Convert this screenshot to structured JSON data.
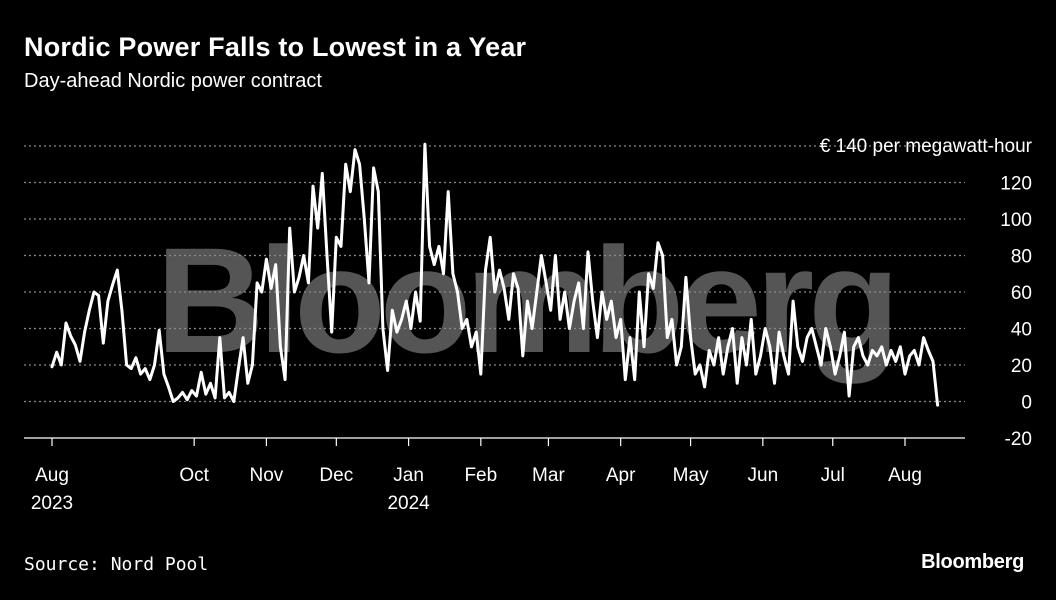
{
  "header": {
    "title": "Nordic Power Falls to Lowest in a Year",
    "subtitle": "Day-ahead Nordic power contract"
  },
  "footer": {
    "source": "Source: Nord Pool",
    "brand": "Bloomberg"
  },
  "watermark": "Bloomberg",
  "colors": {
    "background": "#000000",
    "line": "#ffffff",
    "grid": "#8a8a8a",
    "watermark": "#555555"
  },
  "chart_data": {
    "type": "line",
    "title": "Nordic Power Falls to Lowest in a Year",
    "subtitle": "Day-ahead Nordic power contract",
    "unit_label": "€ 140 per megawatt-hour",
    "ylim": [
      -20,
      140
    ],
    "yticks": [
      -20,
      0,
      20,
      40,
      60,
      80,
      100,
      120,
      140
    ],
    "ytick_labels": [
      "-20",
      "0",
      "20",
      "40",
      "60",
      "80",
      "100",
      "120",
      ""
    ],
    "xlim": [
      "2023-07-31",
      "2024-08-31"
    ],
    "xticks": [
      {
        "date": "2023-08-01",
        "label": "Aug",
        "sublabel": "2023"
      },
      {
        "date": "2023-10-01",
        "label": "Oct",
        "sublabel": ""
      },
      {
        "date": "2023-11-01",
        "label": "Nov",
        "sublabel": ""
      },
      {
        "date": "2023-12-01",
        "label": "Dec",
        "sublabel": ""
      },
      {
        "date": "2024-01-01",
        "label": "Jan",
        "sublabel": "2024"
      },
      {
        "date": "2024-02-01",
        "label": "Feb",
        "sublabel": ""
      },
      {
        "date": "2024-03-01",
        "label": "Mar",
        "sublabel": ""
      },
      {
        "date": "2024-04-01",
        "label": "Apr",
        "sublabel": ""
      },
      {
        "date": "2024-05-01",
        "label": "May",
        "sublabel": ""
      },
      {
        "date": "2024-06-01",
        "label": "Jun",
        "sublabel": ""
      },
      {
        "date": "2024-07-01",
        "label": "Jul",
        "sublabel": ""
      },
      {
        "date": "2024-08-01",
        "label": "Aug",
        "sublabel": ""
      }
    ],
    "grid": true,
    "series": [
      {
        "values": [
          [
            "2023-08-01",
            19
          ],
          [
            "2023-08-03",
            27
          ],
          [
            "2023-08-05",
            20
          ],
          [
            "2023-08-07",
            43
          ],
          [
            "2023-08-09",
            36
          ],
          [
            "2023-08-11",
            31
          ],
          [
            "2023-08-13",
            22
          ],
          [
            "2023-08-15",
            38
          ],
          [
            "2023-08-17",
            50
          ],
          [
            "2023-08-19",
            60
          ],
          [
            "2023-08-21",
            58
          ],
          [
            "2023-08-23",
            32
          ],
          [
            "2023-08-25",
            55
          ],
          [
            "2023-08-27",
            64
          ],
          [
            "2023-08-29",
            72
          ],
          [
            "2023-08-31",
            50
          ],
          [
            "2023-09-02",
            20
          ],
          [
            "2023-09-04",
            18
          ],
          [
            "2023-09-06",
            24
          ],
          [
            "2023-09-08",
            15
          ],
          [
            "2023-09-10",
            18
          ],
          [
            "2023-09-12",
            12
          ],
          [
            "2023-09-14",
            20
          ],
          [
            "2023-09-16",
            39
          ],
          [
            "2023-09-18",
            15
          ],
          [
            "2023-09-20",
            8
          ],
          [
            "2023-09-22",
            0
          ],
          [
            "2023-09-24",
            2
          ],
          [
            "2023-09-26",
            5
          ],
          [
            "2023-09-28",
            1
          ],
          [
            "2023-09-30",
            6
          ],
          [
            "2023-10-02",
            3
          ],
          [
            "2023-10-04",
            16
          ],
          [
            "2023-10-06",
            4
          ],
          [
            "2023-10-08",
            10
          ],
          [
            "2023-10-10",
            2
          ],
          [
            "2023-10-12",
            35
          ],
          [
            "2023-10-14",
            2
          ],
          [
            "2023-10-16",
            5
          ],
          [
            "2023-10-18",
            0
          ],
          [
            "2023-10-20",
            18
          ],
          [
            "2023-10-22",
            35
          ],
          [
            "2023-10-24",
            10
          ],
          [
            "2023-10-26",
            20
          ],
          [
            "2023-10-28",
            65
          ],
          [
            "2023-10-30",
            60
          ],
          [
            "2023-11-01",
            78
          ],
          [
            "2023-11-03",
            62
          ],
          [
            "2023-11-05",
            75
          ],
          [
            "2023-11-07",
            30
          ],
          [
            "2023-11-09",
            12
          ],
          [
            "2023-11-11",
            95
          ],
          [
            "2023-11-13",
            60
          ],
          [
            "2023-11-15",
            68
          ],
          [
            "2023-11-17",
            80
          ],
          [
            "2023-11-19",
            65
          ],
          [
            "2023-11-21",
            118
          ],
          [
            "2023-11-23",
            95
          ],
          [
            "2023-11-25",
            125
          ],
          [
            "2023-11-27",
            80
          ],
          [
            "2023-11-29",
            38
          ],
          [
            "2023-12-01",
            90
          ],
          [
            "2023-12-03",
            85
          ],
          [
            "2023-12-05",
            130
          ],
          [
            "2023-12-07",
            115
          ],
          [
            "2023-12-09",
            138
          ],
          [
            "2023-12-11",
            130
          ],
          [
            "2023-12-13",
            100
          ],
          [
            "2023-12-15",
            65
          ],
          [
            "2023-12-17",
            128
          ],
          [
            "2023-12-19",
            115
          ],
          [
            "2023-12-21",
            40
          ],
          [
            "2023-12-23",
            17
          ],
          [
            "2023-12-25",
            50
          ],
          [
            "2023-12-27",
            38
          ],
          [
            "2023-12-29",
            45
          ],
          [
            "2023-12-31",
            55
          ],
          [
            "2024-01-02",
            40
          ],
          [
            "2024-01-04",
            60
          ],
          [
            "2024-01-06",
            44
          ],
          [
            "2024-01-08",
            141
          ],
          [
            "2024-01-10",
            85
          ],
          [
            "2024-01-12",
            75
          ],
          [
            "2024-01-14",
            85
          ],
          [
            "2024-01-16",
            70
          ],
          [
            "2024-01-18",
            115
          ],
          [
            "2024-01-20",
            70
          ],
          [
            "2024-01-22",
            60
          ],
          [
            "2024-01-24",
            40
          ],
          [
            "2024-01-26",
            45
          ],
          [
            "2024-01-28",
            30
          ],
          [
            "2024-01-30",
            38
          ],
          [
            "2024-02-01",
            15
          ],
          [
            "2024-02-03",
            72
          ],
          [
            "2024-02-05",
            90
          ],
          [
            "2024-02-07",
            60
          ],
          [
            "2024-02-09",
            72
          ],
          [
            "2024-02-11",
            62
          ],
          [
            "2024-02-13",
            45
          ],
          [
            "2024-02-15",
            70
          ],
          [
            "2024-02-17",
            62
          ],
          [
            "2024-02-19",
            25
          ],
          [
            "2024-02-21",
            55
          ],
          [
            "2024-02-23",
            40
          ],
          [
            "2024-02-25",
            60
          ],
          [
            "2024-02-27",
            80
          ],
          [
            "2024-02-29",
            65
          ],
          [
            "2024-03-02",
            50
          ],
          [
            "2024-03-04",
            80
          ],
          [
            "2024-03-06",
            45
          ],
          [
            "2024-03-08",
            60
          ],
          [
            "2024-03-10",
            40
          ],
          [
            "2024-03-12",
            55
          ],
          [
            "2024-03-14",
            65
          ],
          [
            "2024-03-16",
            40
          ],
          [
            "2024-03-18",
            82
          ],
          [
            "2024-03-20",
            55
          ],
          [
            "2024-03-22",
            35
          ],
          [
            "2024-03-24",
            60
          ],
          [
            "2024-03-26",
            45
          ],
          [
            "2024-03-28",
            55
          ],
          [
            "2024-03-30",
            35
          ],
          [
            "2024-04-01",
            45
          ],
          [
            "2024-04-03",
            12
          ],
          [
            "2024-04-05",
            35
          ],
          [
            "2024-04-07",
            12
          ],
          [
            "2024-04-09",
            60
          ],
          [
            "2024-04-11",
            30
          ],
          [
            "2024-04-13",
            70
          ],
          [
            "2024-04-15",
            62
          ],
          [
            "2024-04-17",
            87
          ],
          [
            "2024-04-19",
            80
          ],
          [
            "2024-04-21",
            35
          ],
          [
            "2024-04-23",
            45
          ],
          [
            "2024-04-25",
            20
          ],
          [
            "2024-04-27",
            30
          ],
          [
            "2024-04-29",
            68
          ],
          [
            "2024-05-01",
            35
          ],
          [
            "2024-05-03",
            15
          ],
          [
            "2024-05-05",
            20
          ],
          [
            "2024-05-07",
            8
          ],
          [
            "2024-05-09",
            28
          ],
          [
            "2024-05-11",
            20
          ],
          [
            "2024-05-13",
            35
          ],
          [
            "2024-05-15",
            15
          ],
          [
            "2024-05-17",
            30
          ],
          [
            "2024-05-19",
            40
          ],
          [
            "2024-05-21",
            10
          ],
          [
            "2024-05-23",
            35
          ],
          [
            "2024-05-25",
            20
          ],
          [
            "2024-05-27",
            45
          ],
          [
            "2024-05-29",
            15
          ],
          [
            "2024-05-31",
            25
          ],
          [
            "2024-06-02",
            40
          ],
          [
            "2024-06-04",
            30
          ],
          [
            "2024-06-06",
            10
          ],
          [
            "2024-06-08",
            38
          ],
          [
            "2024-06-10",
            25
          ],
          [
            "2024-06-12",
            15
          ],
          [
            "2024-06-14",
            55
          ],
          [
            "2024-06-16",
            30
          ],
          [
            "2024-06-18",
            22
          ],
          [
            "2024-06-20",
            35
          ],
          [
            "2024-06-22",
            40
          ],
          [
            "2024-06-24",
            30
          ],
          [
            "2024-06-26",
            20
          ],
          [
            "2024-06-28",
            40
          ],
          [
            "2024-06-30",
            30
          ],
          [
            "2024-07-02",
            15
          ],
          [
            "2024-07-04",
            25
          ],
          [
            "2024-07-06",
            38
          ],
          [
            "2024-07-08",
            3
          ],
          [
            "2024-07-10",
            30
          ],
          [
            "2024-07-12",
            35
          ],
          [
            "2024-07-14",
            25
          ],
          [
            "2024-07-16",
            20
          ],
          [
            "2024-07-18",
            28
          ],
          [
            "2024-07-20",
            25
          ],
          [
            "2024-07-22",
            30
          ],
          [
            "2024-07-24",
            20
          ],
          [
            "2024-07-26",
            28
          ],
          [
            "2024-07-28",
            22
          ],
          [
            "2024-07-30",
            30
          ],
          [
            "2024-08-01",
            15
          ],
          [
            "2024-08-03",
            25
          ],
          [
            "2024-08-05",
            28
          ],
          [
            "2024-08-07",
            20
          ],
          [
            "2024-08-09",
            35
          ],
          [
            "2024-08-11",
            28
          ],
          [
            "2024-08-13",
            22
          ],
          [
            "2024-08-15",
            -2
          ]
        ]
      }
    ]
  }
}
